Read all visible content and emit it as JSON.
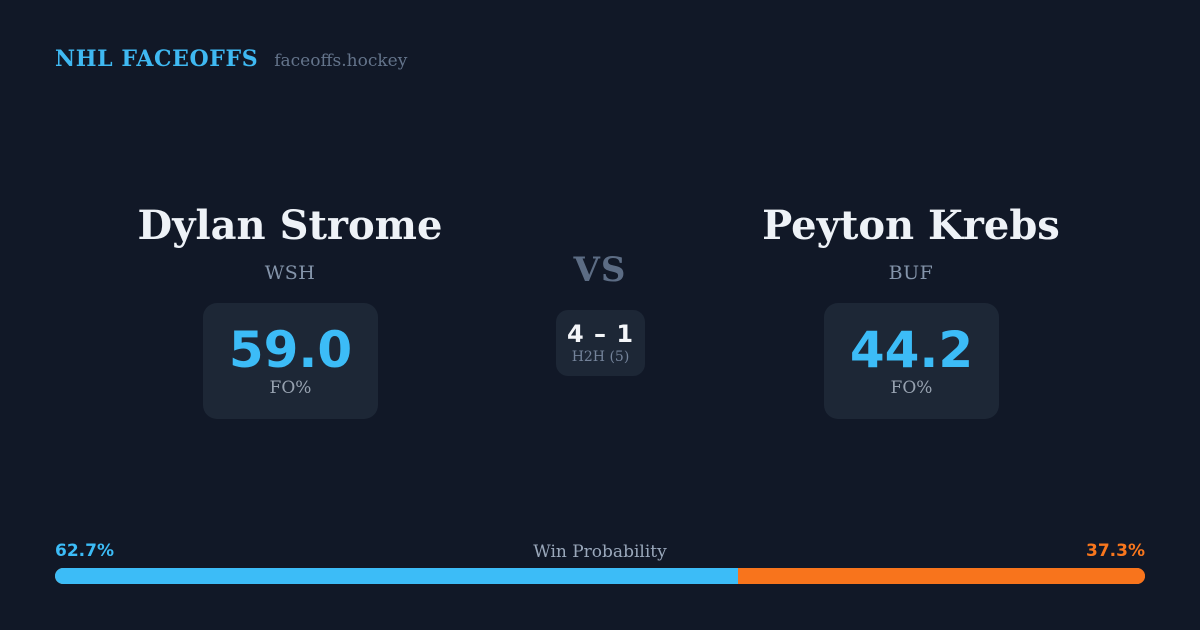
{
  "header": {
    "title": "NHL FACEOFFS",
    "site": "faceoffs.hockey"
  },
  "players": {
    "left": {
      "name": "Dylan Strome",
      "team": "WSH",
      "fo_pct": "59.0",
      "stat_label": "FO%"
    },
    "right": {
      "name": "Peyton Krebs",
      "team": "BUF",
      "fo_pct": "44.2",
      "stat_label": "FO%"
    }
  },
  "center": {
    "vs_label": "VS",
    "h2h_score": "4 – 1",
    "h2h_label": "H2H (5)"
  },
  "win_probability": {
    "label": "Win Probability",
    "left_pct": "62.7%",
    "right_pct": "37.3%",
    "left_value": 62.7,
    "right_value": 37.3
  },
  "chart_data": {
    "type": "bar",
    "orientation": "horizontal-stacked",
    "title": "Win Probability",
    "categories": [
      "Win Probability"
    ],
    "series": [
      {
        "name": "Dylan Strome (WSH)",
        "values": [
          62.7
        ],
        "color": "#3cbcf7"
      },
      {
        "name": "Peyton Krebs (BUF)",
        "values": [
          37.3
        ],
        "color": "#f8741c"
      }
    ],
    "xlim": [
      0,
      100
    ],
    "legend": "none",
    "grid": false
  },
  "colors": {
    "background": "#111827",
    "card": "#1d2736",
    "accent_blue": "#3cbcf7",
    "accent_orange": "#f8741c",
    "text_primary": "#eef2f7",
    "text_muted": "#8494aa"
  }
}
